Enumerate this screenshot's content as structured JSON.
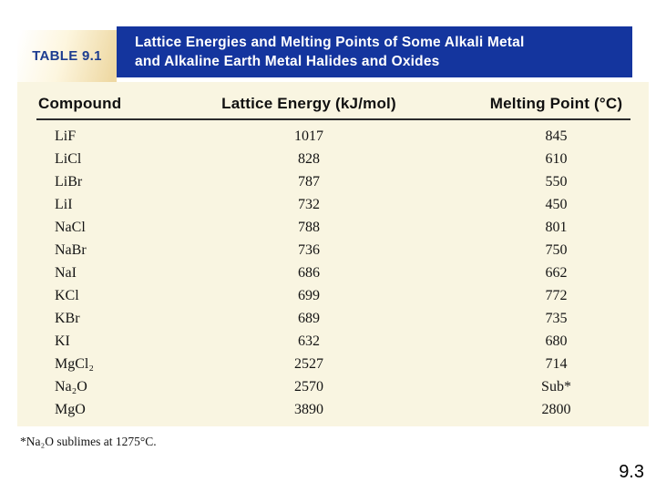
{
  "slide": {
    "page_number": "9.3"
  },
  "table": {
    "label": "TABLE 9.1",
    "title_line1": "Lattice Energies and Melting Points of Some Alkali Metal",
    "title_line2": "and Alkaline Earth Metal Halides and Oxides",
    "columns": [
      "Compound",
      "Lattice Energy (kJ/mol)",
      "Melting Point (°C)"
    ],
    "rows": [
      [
        "LiF",
        "1017",
        "845"
      ],
      [
        "LiCl",
        "828",
        "610"
      ],
      [
        "LiBr",
        "787",
        "550"
      ],
      [
        "LiI",
        "732",
        "450"
      ],
      [
        "NaCl",
        "788",
        "801"
      ],
      [
        "NaBr",
        "736",
        "750"
      ],
      [
        "NaI",
        "686",
        "662"
      ],
      [
        "KCl",
        "699",
        "772"
      ],
      [
        "KBr",
        "689",
        "735"
      ],
      [
        "KI",
        "632",
        "680"
      ],
      [
        "MgCl₂",
        "2527",
        "714"
      ],
      [
        "Na₂O",
        "2570",
        "Sub*"
      ],
      [
        "MgO",
        "3890",
        "2800"
      ]
    ],
    "footnote": "*Na₂O sublimes at 1275°C.",
    "colors": {
      "banner_navy": "#14359E",
      "label_navy": "#1C3C90",
      "cream_background": "#F9F5E1",
      "label_gradient_tan": "#EED8A2"
    }
  }
}
